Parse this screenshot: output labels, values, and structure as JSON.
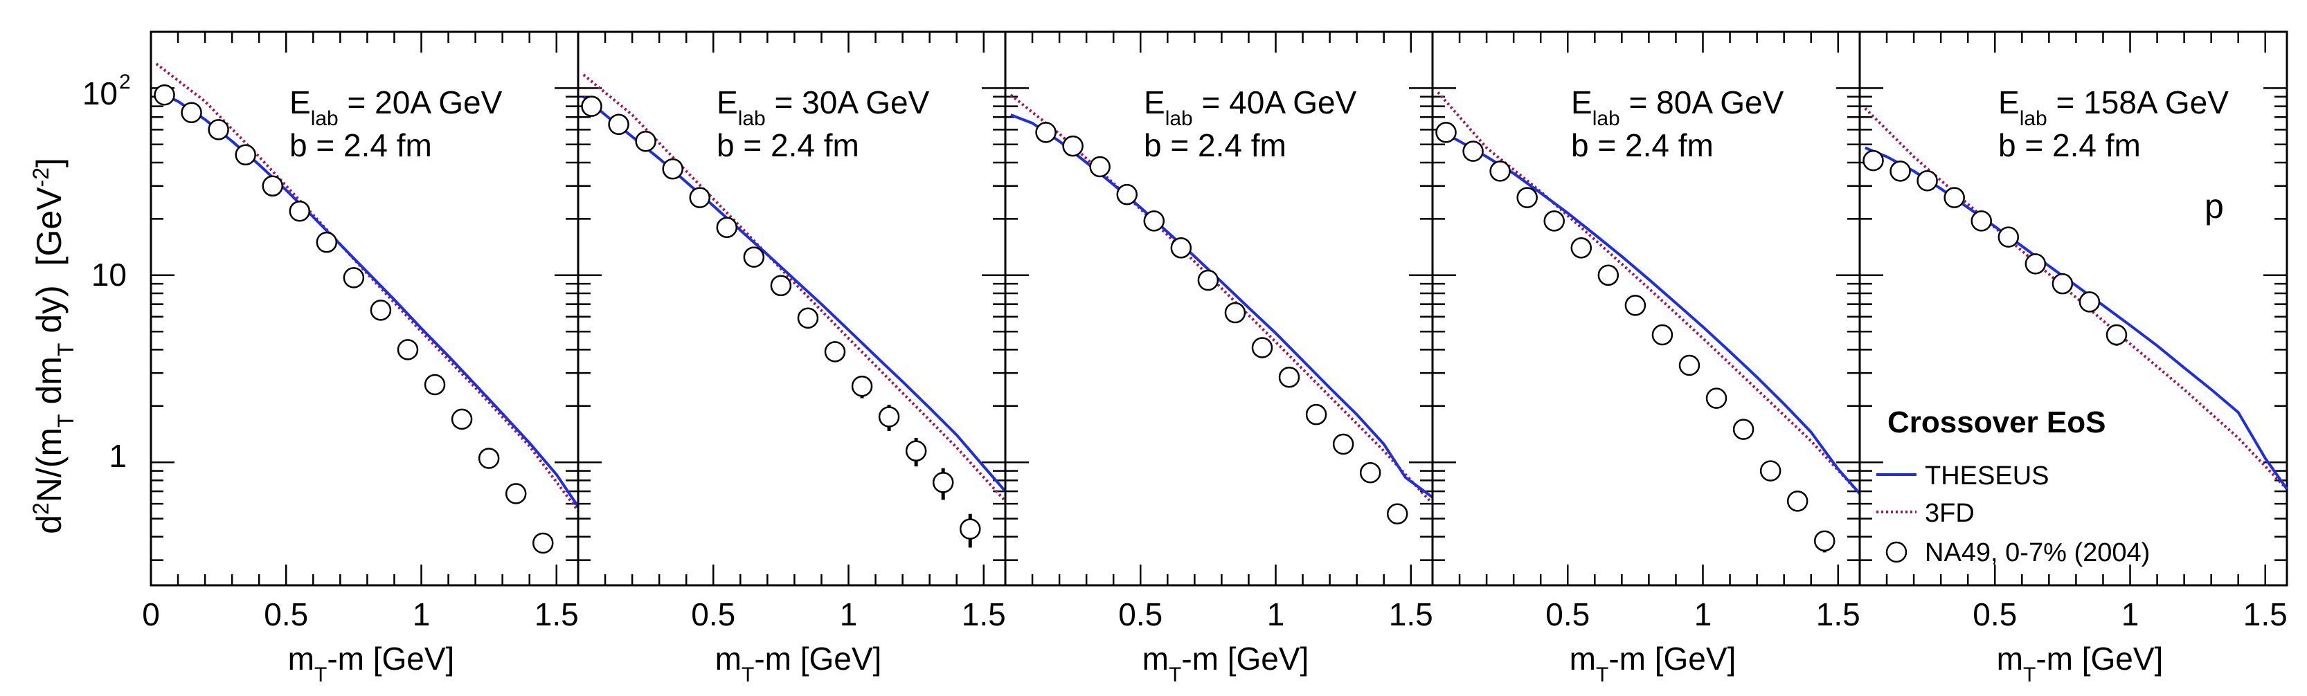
{
  "figure": {
    "ylabel": {
      "parts": [
        "d",
        "2",
        "N/(m",
        "T",
        " dm",
        "T",
        " dy)  [GeV",
        "-2",
        "]"
      ]
    },
    "xlabel": {
      "main": "m",
      "sub": "T",
      "rest": "-m [GeV]"
    },
    "particle_label": "p",
    "legend": {
      "title": "Crossover EoS",
      "entries": [
        "THESEUS",
        "3FD",
        "NA49, 0-7% (2004)"
      ]
    },
    "colors": {
      "theseus": "#1f2fe0",
      "fd3": "#a0145a",
      "data": "#000000"
    },
    "yticks": [
      {
        "value": 1,
        "label": "1"
      },
      {
        "value": 10,
        "label": "10"
      },
      {
        "value": 100,
        "base": "10",
        "exp": "2"
      }
    ]
  },
  "chart_data": [
    {
      "type": "line",
      "title_main": "E",
      "title_sub": "lab",
      "title_rest": " = 20A GeV",
      "impact": "b = 2.4 fm",
      "xlim": [
        0,
        1.58
      ],
      "ylim": [
        0.22,
        200
      ],
      "yscale": "log",
      "xticks": [
        0,
        0.5,
        1,
        1.5
      ],
      "xtick_labels": [
        "0",
        "0.5",
        "1",
        "1.5"
      ],
      "series": [
        {
          "name": "THESEUS",
          "style": "solid",
          "x": [
            0.02,
            0.1,
            0.2,
            0.3,
            0.4,
            0.5,
            0.6,
            0.7,
            0.8,
            0.9,
            1.0,
            1.1,
            1.2,
            1.3,
            1.4,
            1.5,
            1.58
          ],
          "y": [
            96,
            85,
            68,
            52,
            39,
            28.5,
            20.5,
            14.6,
            10.4,
            7.4,
            5.2,
            3.7,
            2.6,
            1.82,
            1.27,
            0.86,
            0.58
          ]
        },
        {
          "name": "3FD",
          "style": "dotted",
          "x": [
            0.02,
            0.2,
            0.4,
            0.6,
            0.8,
            1.0,
            1.2,
            1.4,
            1.58
          ],
          "y": [
            135,
            85,
            43,
            21,
            10.2,
            5.0,
            2.5,
            1.22,
            0.55
          ]
        }
      ],
      "points": {
        "name": "NA49, 0-7% (2004)",
        "x": [
          0.05,
          0.15,
          0.25,
          0.35,
          0.45,
          0.55,
          0.65,
          0.75,
          0.85,
          0.95,
          1.05,
          1.15,
          1.25,
          1.35,
          1.45
        ],
        "y": [
          92,
          74,
          60,
          44,
          30,
          22,
          15,
          9.7,
          6.5,
          4.0,
          2.6,
          1.7,
          1.05,
          0.68,
          0.37
        ],
        "err": [
          0,
          0,
          0,
          0,
          0,
          0,
          0,
          0,
          0,
          0,
          0,
          0,
          0,
          0,
          0.04
        ]
      }
    },
    {
      "type": "line",
      "title_main": "E",
      "title_sub": "lab",
      "title_rest": " = 30A GeV",
      "impact": "b = 2.4 fm",
      "xlim": [
        0,
        1.58
      ],
      "ylim": [
        0.22,
        200
      ],
      "yscale": "log",
      "xticks": [
        0,
        0.5,
        1,
        1.5
      ],
      "xtick_labels": [
        "",
        "0.5",
        "1",
        "1.5"
      ],
      "series": [
        {
          "name": "THESEUS",
          "style": "solid",
          "x": [
            0.02,
            0.1,
            0.2,
            0.3,
            0.4,
            0.5,
            0.6,
            0.7,
            0.8,
            0.9,
            1.0,
            1.1,
            1.2,
            1.3,
            1.4,
            1.5,
            1.58
          ],
          "y": [
            90,
            72,
            55,
            42,
            31.5,
            23.5,
            17.4,
            12.9,
            9.5,
            7.0,
            5.1,
            3.7,
            2.7,
            1.95,
            1.4,
            0.95,
            0.7
          ]
        },
        {
          "name": "3FD",
          "style": "dotted",
          "x": [
            0.02,
            0.2,
            0.4,
            0.6,
            0.8,
            1.0,
            1.2,
            1.4,
            1.58
          ],
          "y": [
            118,
            72,
            36,
            18.2,
            9.1,
            4.6,
            2.35,
            1.2,
            0.62
          ]
        }
      ],
      "points": {
        "name": "NA49, 0-7% (2004)",
        "x": [
          0.05,
          0.15,
          0.25,
          0.35,
          0.45,
          0.55,
          0.65,
          0.75,
          0.85,
          0.95,
          1.05,
          1.15,
          1.25,
          1.35,
          1.45
        ],
        "y": [
          80,
          64,
          52,
          37,
          26,
          18,
          12.5,
          8.8,
          5.9,
          3.9,
          2.55,
          1.75,
          1.15,
          0.78,
          0.44
        ],
        "err": [
          0,
          0,
          0,
          0,
          0,
          0,
          0.8,
          0,
          0.5,
          0.45,
          0.35,
          0.28,
          0.2,
          0.15,
          0.09
        ]
      }
    },
    {
      "type": "line",
      "title_main": "E",
      "title_sub": "lab",
      "title_rest": " = 40A GeV",
      "impact": "b = 2.4 fm",
      "xlim": [
        0,
        1.58
      ],
      "ylim": [
        0.22,
        200
      ],
      "yscale": "log",
      "xticks": [
        0,
        0.5,
        1,
        1.5
      ],
      "xtick_labels": [
        "",
        "0.5",
        "1",
        "1.5"
      ],
      "series": [
        {
          "name": "THESEUS",
          "style": "solid",
          "x": [
            0.02,
            0.1,
            0.2,
            0.3,
            0.4,
            0.5,
            0.6,
            0.7,
            0.8,
            0.9,
            1.0,
            1.1,
            1.2,
            1.3,
            1.4,
            1.48,
            1.58
          ],
          "y": [
            72,
            65,
            52,
            40,
            30.5,
            23,
            17,
            12.6,
            9.2,
            6.7,
            4.9,
            3.5,
            2.5,
            1.8,
            1.25,
            0.83,
            0.65
          ]
        },
        {
          "name": "3FD",
          "style": "dotted",
          "x": [
            0.02,
            0.2,
            0.4,
            0.6,
            0.8,
            1.0,
            1.2,
            1.4,
            1.58
          ],
          "y": [
            92,
            57,
            31,
            16.4,
            8.5,
            4.4,
            2.25,
            1.15,
            0.6
          ]
        }
      ],
      "points": {
        "name": "NA49, 0-7% (2004)",
        "x": [
          0.15,
          0.25,
          0.35,
          0.45,
          0.55,
          0.65,
          0.75,
          0.85,
          0.95,
          1.05,
          1.15,
          1.25,
          1.35,
          1.45
        ],
        "y": [
          58,
          49,
          38,
          27,
          19.5,
          14,
          9.4,
          6.3,
          4.1,
          2.85,
          1.8,
          1.25,
          0.88,
          0.53
        ],
        "err": [
          0,
          0,
          0,
          0,
          0,
          0,
          0,
          0,
          0,
          0,
          0,
          0,
          0,
          0
        ]
      }
    },
    {
      "type": "line",
      "title_main": "E",
      "title_sub": "lab",
      "title_rest": " = 80A GeV",
      "impact": "b = 2.4 fm",
      "xlim": [
        0,
        1.58
      ],
      "ylim": [
        0.22,
        200
      ],
      "yscale": "log",
      "xticks": [
        0,
        0.5,
        1,
        1.5
      ],
      "xtick_labels": [
        "",
        "0.5",
        "1",
        "1.5"
      ],
      "series": [
        {
          "name": "THESEUS",
          "style": "solid",
          "x": [
            0.02,
            0.1,
            0.2,
            0.3,
            0.4,
            0.5,
            0.6,
            0.7,
            0.8,
            0.9,
            1.0,
            1.1,
            1.2,
            1.3,
            1.4,
            1.5,
            1.58
          ],
          "y": [
            60,
            52,
            43,
            35,
            27.5,
            21.5,
            16.5,
            12.6,
            9.5,
            7.1,
            5.3,
            3.9,
            2.85,
            2.05,
            1.45,
            0.92,
            0.68
          ]
        },
        {
          "name": "3FD",
          "style": "dotted",
          "x": [
            0.02,
            0.2,
            0.4,
            0.6,
            0.8,
            1.0,
            1.2,
            1.4,
            1.58
          ],
          "y": [
            95,
            48,
            28,
            15.5,
            8.5,
            4.6,
            2.45,
            1.3,
            0.68
          ]
        }
      ],
      "points": {
        "name": "NA49, 0-7% (2004)",
        "x": [
          0.05,
          0.15,
          0.25,
          0.35,
          0.45,
          0.55,
          0.65,
          0.75,
          0.85,
          0.95,
          1.05,
          1.15,
          1.25,
          1.35,
          1.45
        ],
        "y": [
          58,
          46,
          36,
          26,
          19.5,
          14,
          10,
          6.9,
          4.8,
          3.3,
          2.2,
          1.5,
          0.9,
          0.62,
          0.38
        ],
        "err": [
          0,
          0,
          0,
          0,
          0,
          0,
          0,
          0,
          0,
          0,
          0,
          0,
          0.07,
          0.06,
          0.05
        ]
      }
    },
    {
      "type": "line",
      "title_main": "E",
      "title_sub": "lab",
      "title_rest": " = 158A GeV",
      "impact": "b = 2.4 fm",
      "xlim": [
        0,
        1.58
      ],
      "ylim": [
        0.22,
        200
      ],
      "yscale": "log",
      "xticks": [
        0,
        0.5,
        1,
        1.5
      ],
      "xtick_labels": [
        "",
        "0.5",
        "1",
        "1.5"
      ],
      "series": [
        {
          "name": "THESEUS",
          "style": "solid",
          "x": [
            0.02,
            0.1,
            0.2,
            0.3,
            0.4,
            0.5,
            0.6,
            0.7,
            0.8,
            0.9,
            1.0,
            1.1,
            1.2,
            1.3,
            1.4,
            1.5,
            1.58
          ],
          "y": [
            48,
            43,
            36,
            29,
            23,
            18.2,
            14.3,
            11.2,
            8.8,
            6.9,
            5.4,
            4.2,
            3.2,
            2.45,
            1.85,
            1.05,
            0.72
          ]
        },
        {
          "name": "3FD",
          "style": "dotted",
          "x": [
            0.02,
            0.2,
            0.4,
            0.6,
            0.8,
            1.0,
            1.2,
            1.4,
            1.58
          ],
          "y": [
            78,
            43,
            24,
            13.5,
            7.6,
            4.3,
            2.45,
            1.35,
            0.72
          ]
        }
      ],
      "points": {
        "name": "NA49, 0-7% (2004)",
        "x": [
          0.05,
          0.15,
          0.25,
          0.35,
          0.45,
          0.55,
          0.65,
          0.75,
          0.85,
          0.95
        ],
        "y": [
          41,
          36,
          32,
          26,
          19.5,
          16,
          11.5,
          9,
          7.2,
          4.8
        ],
        "err": [
          0,
          0,
          0,
          0,
          0,
          0,
          0,
          0,
          0,
          0.6
        ]
      }
    }
  ]
}
